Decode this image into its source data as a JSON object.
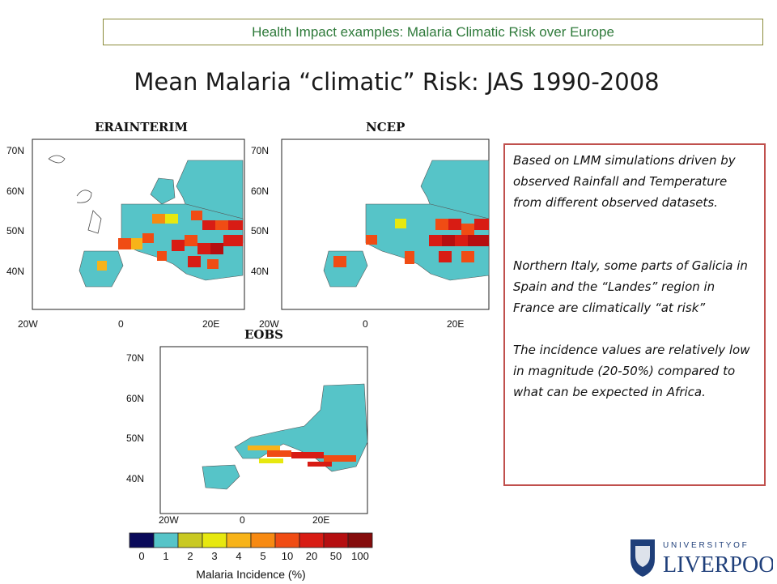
{
  "banner": "Health Impact examples: Malaria Climatic Risk over Europe",
  "title": "Mean Malaria “climatic” Risk: JAS 1990-2008",
  "panels": [
    {
      "title": "ERAINTERIM"
    },
    {
      "title": "NCEP"
    },
    {
      "title": "EOBS"
    }
  ],
  "lat_labels": [
    "70N",
    "60N",
    "50N",
    "40N"
  ],
  "lon_labels": [
    "20W",
    "0",
    "20E"
  ],
  "colorbar": {
    "ticks": [
      "0",
      "1",
      "2",
      "3",
      "4",
      "5",
      "10",
      "20",
      "50",
      "100"
    ],
    "colors": [
      "#0a0a5a",
      "#56c4c8",
      "#c9c923",
      "#e7e80f",
      "#f7b319",
      "#f78a12",
      "#f04c14",
      "#d81c14",
      "#b50e10",
      "#850c0c"
    ],
    "label": "Malaria Incidence (%)"
  },
  "notes": [
    "Based on LMM simulations driven by observed Rainfall and Temperature from different observed datasets.",
    "Northern Italy, some parts of Galicia in Spain and the “Landes” region in France are climatically “at risk”",
    "The incidence values are relatively low in magnitude (20-50%) compared to what can be expected in Africa."
  ],
  "logo": {
    "line1": "U N I V E R S I T Y   O F",
    "line2": "LIVERPOOL"
  },
  "colors": {
    "land": "#56c4c8",
    "banner_text": "#2e7a3a",
    "box_border": "#c0504d"
  }
}
